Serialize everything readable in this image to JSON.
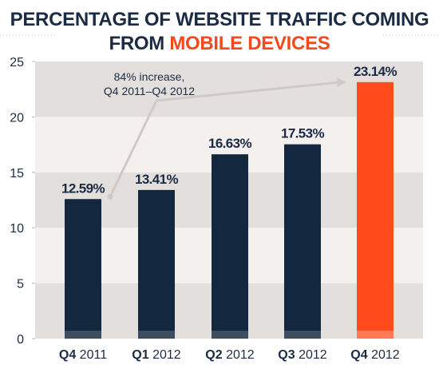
{
  "colors": {
    "bar": "#13273f",
    "highlight_bar": "#ff4a1c",
    "bar_base": "#3e4c60",
    "text": "#1b2b44",
    "accent_text": "#f24a1d",
    "band_light": "#f3f0ee",
    "band_dark": "#e3dfdc",
    "annotation_line": "#cfcac7"
  },
  "chart_data": {
    "type": "bar",
    "title_line1": "PERCENTAGE OF WEBSITE TRAFFIC COMING",
    "title_line2_prefix": "FROM ",
    "title_line2_highlight": "MOBILE DEVICES",
    "categories": [
      {
        "quarter": "Q4",
        "year": "2011"
      },
      {
        "quarter": "Q1",
        "year": "2012"
      },
      {
        "quarter": "Q2",
        "year": "2012"
      },
      {
        "quarter": "Q3",
        "year": "2012"
      },
      {
        "quarter": "Q4",
        "year": "2012"
      }
    ],
    "values": [
      12.59,
      13.41,
      16.63,
      17.53,
      23.14
    ],
    "value_labels": [
      "12.59%",
      "13.41%",
      "16.63%",
      "17.53%",
      "23.14%"
    ],
    "highlight_index": 4,
    "ylim": [
      0,
      25
    ],
    "yticks": [
      0,
      5,
      10,
      15,
      20,
      25
    ],
    "grid": "alternating horizontal bands",
    "legend": "none",
    "annotation": {
      "line1": "84% increase,",
      "line2": "Q4 2011–Q4 2012",
      "from_category_index": 0,
      "to_category_index": 4
    }
  }
}
